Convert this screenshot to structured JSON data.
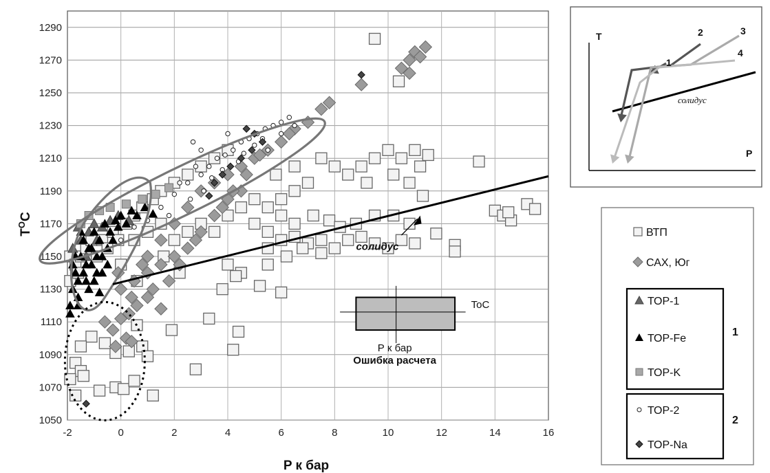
{
  "chart_data": {
    "type": "scatter",
    "xlabel": "P к бар",
    "ylabel_main": "T",
    "ylabel_sup": "O",
    "ylabel_tail": "C",
    "xlim": [
      -2,
      16
    ],
    "ylim": [
      1050,
      1300
    ],
    "xticks": [
      -2,
      0,
      2,
      4,
      6,
      8,
      10,
      12,
      14,
      16
    ],
    "yticks": [
      1050,
      1070,
      1090,
      1110,
      1130,
      1150,
      1170,
      1190,
      1210,
      1230,
      1250,
      1270,
      1290
    ],
    "grid": true,
    "series": [
      {
        "name": "ВТП",
        "marker": "square-white",
        "points": [
          [
            -1.9,
            1150
          ],
          [
            -1.7,
            1145
          ],
          [
            -1.5,
            1150
          ],
          [
            -1.3,
            1155
          ],
          [
            -1.1,
            1160
          ],
          [
            -0.9,
            1150
          ],
          [
            -0.7,
            1160
          ],
          [
            -0.5,
            1155
          ],
          [
            -0.3,
            1165
          ],
          [
            -0.1,
            1160
          ],
          [
            0.2,
            1170
          ],
          [
            0.5,
            1175
          ],
          [
            0.8,
            1180
          ],
          [
            1.2,
            1185
          ],
          [
            1.5,
            1190
          ],
          [
            2.0,
            1195
          ],
          [
            2.5,
            1200
          ],
          [
            3.0,
            1205
          ],
          [
            3.5,
            1210
          ],
          [
            4.0,
            1215
          ],
          [
            0.5,
            1160
          ],
          [
            1.0,
            1165
          ],
          [
            1.5,
            1170
          ],
          [
            2.0,
            1160
          ],
          [
            2.5,
            1165
          ],
          [
            3.0,
            1170
          ],
          [
            3.5,
            1165
          ],
          [
            4.0,
            1175
          ],
          [
            4.5,
            1180
          ],
          [
            5.0,
            1185
          ],
          [
            5.5,
            1180
          ],
          [
            6.0,
            1185
          ],
          [
            6.5,
            1190
          ],
          [
            7.0,
            1195
          ],
          [
            5.8,
            1200
          ],
          [
            6.5,
            1205
          ],
          [
            7.5,
            1210
          ],
          [
            8.0,
            1205
          ],
          [
            8.5,
            1200
          ],
          [
            9.0,
            1205
          ],
          [
            9.5,
            1210
          ],
          [
            10.0,
            1215
          ],
          [
            10.5,
            1210
          ],
          [
            11.0,
            1215
          ],
          [
            11.5,
            1212
          ],
          [
            9.2,
            1195
          ],
          [
            10.2,
            1200
          ],
          [
            10.8,
            1195
          ],
          [
            11.2,
            1205
          ],
          [
            13.4,
            1208
          ],
          [
            5.0,
            1170
          ],
          [
            5.5,
            1165
          ],
          [
            6.0,
            1175
          ],
          [
            6.5,
            1170
          ],
          [
            7.2,
            1175
          ],
          [
            7.8,
            1172
          ],
          [
            8.2,
            1168
          ],
          [
            8.8,
            1170
          ],
          [
            9.5,
            1175
          ],
          [
            10.2,
            1175
          ],
          [
            10.8,
            1170
          ],
          [
            11.3,
            1187
          ],
          [
            5.5,
            1155
          ],
          [
            6.0,
            1160
          ],
          [
            6.5,
            1162
          ],
          [
            7.0,
            1158
          ],
          [
            7.5,
            1160
          ],
          [
            8.0,
            1155
          ],
          [
            8.5,
            1160
          ],
          [
            9.0,
            1162
          ],
          [
            9.5,
            1158
          ],
          [
            10.0,
            1155
          ],
          [
            10.5,
            1160
          ],
          [
            11.0,
            1158
          ],
          [
            11.8,
            1164
          ],
          [
            12.5,
            1157
          ],
          [
            12.5,
            1153
          ],
          [
            4.5,
            1140
          ],
          [
            5.5,
            1145
          ],
          [
            6.2,
            1150
          ],
          [
            6.8,
            1155
          ],
          [
            7.5,
            1152
          ],
          [
            4.0,
            1145
          ],
          [
            4.3,
            1138
          ],
          [
            3.8,
            1130
          ],
          [
            5.2,
            1132
          ],
          [
            6.0,
            1128
          ],
          [
            3.3,
            1112
          ],
          [
            4.4,
            1104
          ],
          [
            4.2,
            1093
          ],
          [
            1.9,
            1105
          ],
          [
            2.8,
            1081
          ],
          [
            0.6,
            1108
          ],
          [
            0.8,
            1095
          ],
          [
            1.0,
            1089
          ],
          [
            0.3,
            1092
          ],
          [
            -0.2,
            1091
          ],
          [
            -0.6,
            1097
          ],
          [
            -1.1,
            1101
          ],
          [
            -1.5,
            1095
          ],
          [
            -1.7,
            1085
          ],
          [
            -1.5,
            1080
          ],
          [
            -1.9,
            1075
          ],
          [
            -1.7,
            1065
          ],
          [
            -0.8,
            1068
          ],
          [
            -0.2,
            1070
          ],
          [
            0.1,
            1069
          ],
          [
            0.5,
            1074
          ],
          [
            1.2,
            1065
          ],
          [
            -1.4,
            1077
          ],
          [
            14.0,
            1178
          ],
          [
            14.3,
            1175
          ],
          [
            14.6,
            1172
          ],
          [
            15.2,
            1182
          ],
          [
            15.5,
            1179
          ],
          [
            14.5,
            1177
          ],
          [
            9.5,
            1283
          ],
          [
            10.4,
            1257
          ],
          [
            -1.9,
            1135
          ],
          [
            -1.6,
            1140
          ],
          [
            0.0,
            1145
          ],
          [
            0.6,
            1135
          ],
          [
            1.6,
            1150
          ],
          [
            2.2,
            1140
          ]
        ]
      },
      {
        "name": "САХ, Юг",
        "marker": "diamond-gray",
        "points": [
          [
            -0.6,
            1110
          ],
          [
            -0.3,
            1105
          ],
          [
            0.0,
            1112
          ],
          [
            0.3,
            1115
          ],
          [
            0.6,
            1120
          ],
          [
            1.0,
            1125
          ],
          [
            1.5,
            1118
          ],
          [
            0.2,
            1100
          ],
          [
            -0.2,
            1095
          ],
          [
            0.4,
            1098
          ],
          [
            0.0,
            1130
          ],
          [
            0.5,
            1135
          ],
          [
            1.0,
            1140
          ],
          [
            1.5,
            1145
          ],
          [
            2.0,
            1150
          ],
          [
            2.5,
            1155
          ],
          [
            3.0,
            1165
          ],
          [
            3.5,
            1175
          ],
          [
            4.0,
            1185
          ],
          [
            4.5,
            1190
          ],
          [
            1.0,
            1150
          ],
          [
            1.5,
            1160
          ],
          [
            2.0,
            1170
          ],
          [
            2.5,
            1180
          ],
          [
            3.0,
            1190
          ],
          [
            3.5,
            1195
          ],
          [
            4.0,
            1200
          ],
          [
            4.5,
            1205
          ],
          [
            5.0,
            1210
          ],
          [
            5.5,
            1215
          ],
          [
            6.0,
            1220
          ],
          [
            6.5,
            1228
          ],
          [
            7.0,
            1232
          ],
          [
            7.5,
            1240
          ],
          [
            7.8,
            1244
          ],
          [
            6.3,
            1225
          ],
          [
            5.2,
            1212
          ],
          [
            4.7,
            1200
          ],
          [
            4.2,
            1190
          ],
          [
            3.8,
            1180
          ],
          [
            2.8,
            1160
          ],
          [
            2.2,
            1145
          ],
          [
            1.2,
            1130
          ],
          [
            0.4,
            1125
          ],
          [
            -0.1,
            1140
          ],
          [
            0.8,
            1145
          ],
          [
            1.8,
            1135
          ],
          [
            10.5,
            1265
          ],
          [
            10.8,
            1270
          ],
          [
            11.0,
            1275
          ],
          [
            11.2,
            1272
          ],
          [
            11.4,
            1278
          ],
          [
            10.8,
            1262
          ],
          [
            9.0,
            1255
          ]
        ]
      },
      {
        "name": "ТОР-1",
        "marker": "triangle-gray",
        "points": [
          [
            -1.8,
            1155
          ],
          [
            -1.5,
            1160
          ],
          [
            -1.2,
            1165
          ],
          [
            -1.0,
            1170
          ],
          [
            -0.7,
            1168
          ],
          [
            -0.4,
            1172
          ],
          [
            -0.1,
            1175
          ],
          [
            0.3,
            1172
          ],
          [
            -1.6,
            1168
          ],
          [
            -1.3,
            1150
          ],
          [
            -0.9,
            1160
          ]
        ]
      },
      {
        "name": "ТОР-Fe",
        "marker": "triangle-black",
        "points": [
          [
            -1.9,
            1120
          ],
          [
            -1.8,
            1130
          ],
          [
            -1.7,
            1140
          ],
          [
            -1.6,
            1125
          ],
          [
            -1.5,
            1150
          ],
          [
            -1.4,
            1160
          ],
          [
            -1.3,
            1135
          ],
          [
            -1.2,
            1155
          ],
          [
            -1.1,
            1145
          ],
          [
            -1.0,
            1165
          ],
          [
            -0.9,
            1140
          ],
          [
            -0.8,
            1160
          ],
          [
            -0.7,
            1150
          ],
          [
            -0.6,
            1170
          ],
          [
            -0.5,
            1155
          ],
          [
            -0.4,
            1165
          ],
          [
            -0.3,
            1160
          ],
          [
            -0.2,
            1172
          ],
          [
            -0.1,
            1168
          ],
          [
            0.0,
            1175
          ],
          [
            0.2,
            1170
          ],
          [
            0.4,
            1178
          ],
          [
            0.6,
            1175
          ],
          [
            -1.7,
            1150
          ],
          [
            -1.5,
            1165
          ],
          [
            -1.3,
            1145
          ],
          [
            -1.1,
            1155
          ],
          [
            -0.9,
            1150
          ],
          [
            -0.7,
            1140
          ],
          [
            -0.5,
            1145
          ],
          [
            -1.8,
            1145
          ],
          [
            -1.6,
            1135
          ],
          [
            -1.4,
            1140
          ],
          [
            -1.2,
            1130
          ],
          [
            -1.0,
            1135
          ],
          [
            -0.8,
            1128
          ],
          [
            -1.9,
            1115
          ],
          [
            -1.6,
            1120
          ],
          [
            0.9,
            1180
          ],
          [
            1.2,
            1176
          ]
        ]
      },
      {
        "name": "ТОР-K",
        "marker": "square-gray",
        "points": [
          [
            -1.5,
            1170
          ],
          [
            -1.2,
            1175
          ],
          [
            -0.8,
            1178
          ],
          [
            -0.4,
            1180
          ],
          [
            0.2,
            1182
          ],
          [
            0.8,
            1185
          ],
          [
            1.3,
            1188
          ],
          [
            1.8,
            1192
          ]
        ]
      },
      {
        "name": "ТОР-2",
        "marker": "circle-white",
        "points": [
          [
            1.5,
            1180
          ],
          [
            2.0,
            1188
          ],
          [
            2.5,
            1195
          ],
          [
            3.0,
            1200
          ],
          [
            3.3,
            1205
          ],
          [
            3.6,
            1210
          ],
          [
            3.9,
            1212
          ],
          [
            4.2,
            1215
          ],
          [
            4.5,
            1220
          ],
          [
            4.8,
            1222
          ],
          [
            5.1,
            1225
          ],
          [
            5.4,
            1228
          ],
          [
            5.7,
            1230
          ],
          [
            6.0,
            1232
          ],
          [
            6.3,
            1235
          ],
          [
            3.0,
            1215
          ],
          [
            2.7,
            1220
          ],
          [
            4.0,
            1225
          ],
          [
            5.0,
            1218
          ],
          [
            5.5,
            1215
          ],
          [
            2.2,
            1195
          ],
          [
            2.8,
            1205
          ],
          [
            3.4,
            1198
          ],
          [
            4.4,
            1208
          ],
          [
            3.8,
            1203
          ],
          [
            4.6,
            1213
          ],
          [
            5.3,
            1222
          ],
          [
            1.0,
            1172
          ],
          [
            0.5,
            1168
          ],
          [
            0.0,
            1160
          ],
          [
            6.0,
            1225
          ],
          [
            6.5,
            1230
          ],
          [
            3.1,
            1190
          ],
          [
            2.6,
            1185
          ],
          [
            1.8,
            1175
          ]
        ]
      },
      {
        "name": "ТОР-Na",
        "marker": "diamond-dark",
        "points": [
          [
            4.5,
            1210
          ],
          [
            4.9,
            1215
          ],
          [
            5.3,
            1220
          ],
          [
            4.1,
            1205
          ],
          [
            3.8,
            1200
          ],
          [
            5.0,
            1225
          ],
          [
            3.5,
            1195
          ],
          [
            4.7,
            1228
          ],
          [
            9.0,
            1261
          ],
          [
            -1.3,
            1060
          ],
          [
            3.3,
            1187
          ]
        ]
      }
    ],
    "solidus": {
      "label": "солидус",
      "points": [
        [
          -0.3,
          1133
        ],
        [
          16,
          1199
        ]
      ]
    },
    "error_box": {
      "x_range": [
        8.8,
        12.5
      ],
      "y_range": [
        1105,
        1125
      ],
      "center": [
        10.3,
        1116
      ],
      "cross_x": [
        8.2,
        12.9
      ],
      "cross_y": [
        1097,
        1132
      ],
      "label_T": "ToC",
      "label_P": "Р к бар",
      "label_title": "Ошибка расчета"
    },
    "legend": {
      "position": "right",
      "groups": [
        {
          "label": "",
          "items": [
            "ВТП",
            "САХ, Юг"
          ]
        },
        {
          "label": "1",
          "items": [
            "ТОР-1",
            "ТОР-Fe",
            "ТОР-K"
          ]
        },
        {
          "label": "2",
          "items": [
            "ТОР-2",
            "ТОР-Na"
          ]
        }
      ]
    },
    "inset": {
      "ylabel": "T",
      "xlabel": "P",
      "curve_label": "солидус",
      "path_labels": [
        "1",
        "2",
        "3",
        "4"
      ]
    }
  }
}
